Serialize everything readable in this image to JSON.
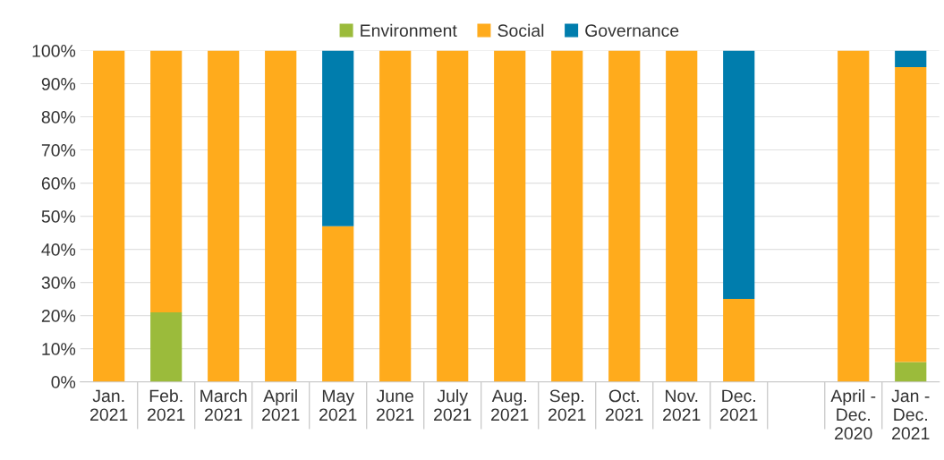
{
  "chart_data": {
    "type": "bar",
    "stacked": true,
    "categories": [
      "Jan.\n2021",
      "Feb.\n2021",
      "March\n2021",
      "April\n2021",
      "May\n2021",
      "June\n2021",
      "July\n2021",
      "Aug.\n2021",
      "Sep.\n2021",
      "Oct.\n2021",
      "Nov.\n2021",
      "Dec.\n2021",
      null,
      "April -\nDec.\n2020",
      "Jan -\nDec.\n2021"
    ],
    "series": [
      {
        "name": "Environment",
        "color": "#9bbb3b",
        "values": [
          0,
          21,
          0,
          0,
          0,
          0,
          0,
          0,
          0,
          0,
          0,
          0,
          null,
          0,
          6
        ]
      },
      {
        "name": "Social",
        "color": "#ffab1c",
        "values": [
          100,
          79,
          100,
          100,
          47,
          100,
          100,
          100,
          100,
          100,
          100,
          25,
          null,
          100,
          89
        ]
      },
      {
        "name": "Governance",
        "color": "#007dad",
        "values": [
          0,
          0,
          0,
          0,
          53,
          0,
          0,
          0,
          0,
          0,
          0,
          75,
          null,
          0,
          5
        ]
      }
    ],
    "ylim": [
      0,
      100
    ],
    "yticks": [
      {
        "value": 0,
        "label": "0%"
      },
      {
        "value": 10,
        "label": "10%"
      },
      {
        "value": 20,
        "label": "20%"
      },
      {
        "value": 30,
        "label": "30%"
      },
      {
        "value": 40,
        "label": "40%"
      },
      {
        "value": 50,
        "label": "50%"
      },
      {
        "value": 60,
        "label": "60%"
      },
      {
        "value": 70,
        "label": "70%"
      },
      {
        "value": 80,
        "label": "80%"
      },
      {
        "value": 90,
        "label": "90%"
      },
      {
        "value": 100,
        "label": "100%"
      }
    ],
    "grid": "y",
    "legend": "top"
  }
}
